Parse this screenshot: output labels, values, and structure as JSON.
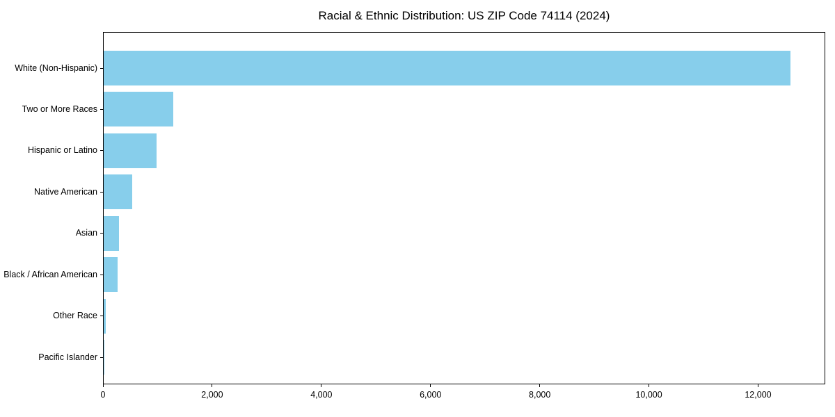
{
  "figure": {
    "background": "#ffffff"
  },
  "chart_data": {
    "type": "bar",
    "orientation": "horizontal",
    "title": "Racial & Ethnic Distribution: US ZIP Code 74114 (2024)",
    "categories": [
      "White (Non-Hispanic)",
      "Two or More Races",
      "Hispanic or Latino",
      "Native American",
      "Asian",
      "Black / African American",
      "Other Race",
      "Pacific Islander"
    ],
    "values": [
      12600,
      1280,
      970,
      520,
      280,
      260,
      40,
      5
    ],
    "bar_color": "#87CEEB",
    "axis_color": "#000000",
    "text_color": "#000000",
    "xlabel": "",
    "ylabel": "",
    "xlim": [
      0,
      13230
    ],
    "x_ticks": [
      0,
      2000,
      4000,
      6000,
      8000,
      10000,
      12000
    ],
    "x_tick_labels": [
      "0",
      "2,000",
      "4,000",
      "6,000",
      "8,000",
      "10,000",
      "12,000"
    ],
    "grid": false,
    "legend": "none",
    "spines": "full-box"
  }
}
